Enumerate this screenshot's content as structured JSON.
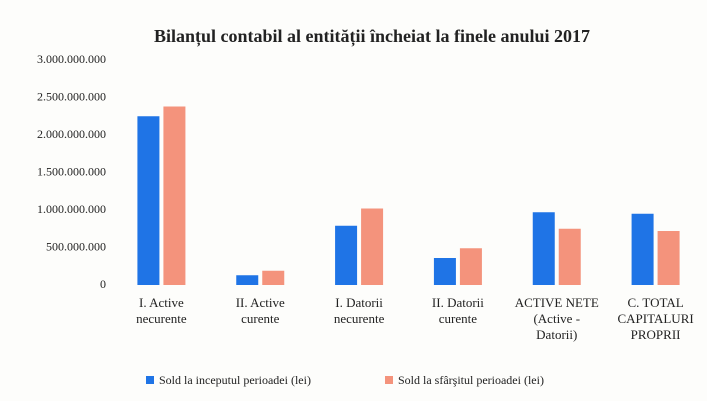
{
  "chart_data": {
    "type": "bar",
    "title": "Bilanțul contabil al entității încheiat la finele anului 2017",
    "categories": [
      [
        "I. Active",
        "necurente"
      ],
      [
        "II. Active",
        "curente"
      ],
      [
        "I. Datorii",
        "necurente"
      ],
      [
        "II. Datorii",
        "curente"
      ],
      [
        "ACTIVE NETE",
        "(Active -",
        "Datorii)"
      ],
      [
        "C. TOTAL",
        "CAPITALURI",
        "PROPRII"
      ]
    ],
    "series": [
      {
        "name": "Sold la inceputul perioadei (lei)",
        "color": "#1f74e6",
        "values": [
          2250000000,
          130000000,
          790000000,
          360000000,
          970000000,
          950000000
        ]
      },
      {
        "name": "Sold la sfârşitul perioadei  (lei)",
        "color": "#f4937c",
        "values": [
          2380000000,
          190000000,
          1020000000,
          490000000,
          750000000,
          720000000
        ]
      }
    ],
    "ylim": [
      0,
      3000000000
    ],
    "yticks": [
      0,
      {
        "value": 500000000,
        "label": "500.000.000"
      },
      {
        "value": 1000000000,
        "label": "1.000.000.000"
      },
      {
        "value": 1500000000,
        "label": "1.500.000.000"
      },
      {
        "value": 2000000000,
        "label": "2.000.000.000"
      },
      {
        "value": 2500000000,
        "label": "2.500.000.000"
      },
      {
        "value": 3000000000,
        "label": "3.000.000.000"
      }
    ],
    "grid": false,
    "legend": "bottom"
  }
}
